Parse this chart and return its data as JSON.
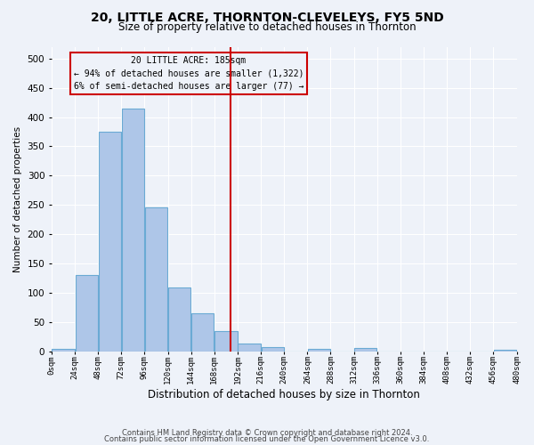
{
  "title": "20, LITTLE ACRE, THORNTON-CLEVELEYS, FY5 5ND",
  "subtitle": "Size of property relative to detached houses in Thornton",
  "xlabel": "Distribution of detached houses by size in Thornton",
  "ylabel": "Number of detached properties",
  "footnote1": "Contains HM Land Registry data © Crown copyright and database right 2024.",
  "footnote2": "Contains public sector information licensed under the Open Government Licence v3.0.",
  "bin_edges": [
    0,
    24,
    48,
    72,
    96,
    120,
    144,
    168,
    192,
    216,
    240,
    264,
    288,
    312,
    336,
    360,
    384,
    408,
    432,
    456,
    480
  ],
  "bar_heights": [
    4,
    130,
    375,
    415,
    246,
    110,
    65,
    35,
    14,
    8,
    0,
    5,
    0,
    6,
    0,
    0,
    0,
    0,
    0,
    3
  ],
  "bar_color": "#aec6e8",
  "bar_edgecolor": "#6aaad4",
  "property_size": 185,
  "property_line_color": "#cc0000",
  "box_text_line1": "20 LITTLE ACRE: 185sqm",
  "box_text_line2": "← 94% of detached houses are smaller (1,322)",
  "box_text_line3": "6% of semi-detached houses are larger (77) →",
  "box_color": "#cc0000",
  "ylim": [
    0,
    520
  ],
  "yticks": [
    0,
    50,
    100,
    150,
    200,
    250,
    300,
    350,
    400,
    450,
    500
  ],
  "background_color": "#eef2f9",
  "grid_color": "#ffffff",
  "title_fontsize": 10,
  "subtitle_fontsize": 8.5
}
